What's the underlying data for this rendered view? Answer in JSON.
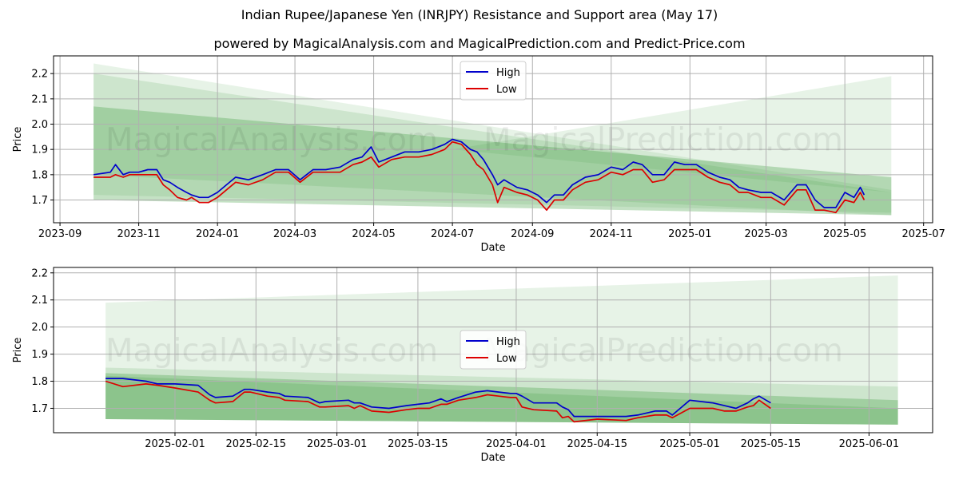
{
  "title": "Indian Rupee/Japanese Yen (INRJPY) Resistance and Support area (May 17)",
  "subtitle": "powered by MagicalAnalysis.com and MagicalPrediction.com and Predict-Price.com",
  "watermark": [
    "MagicalAnalysis.com",
    "MagicalPrediction.com"
  ],
  "colors": {
    "high": "#0000cc",
    "low": "#dd0000",
    "band": "#3c9a3c",
    "grid": "#b0b0b0"
  },
  "chart_data": [
    {
      "type": "line",
      "xlabel": "Date",
      "ylabel": "Price",
      "x_range": [
        "2023-08-27",
        "2025-07-08"
      ],
      "ylim": [
        1.61,
        2.27
      ],
      "yticks": [
        1.7,
        1.8,
        1.9,
        2.0,
        2.1,
        2.2
      ],
      "ytick_labels": [
        "1.7",
        "1.8",
        "1.9",
        "2.0",
        "2.1",
        "2.2"
      ],
      "xticks": [
        "2023-09-01",
        "2023-11-01",
        "2024-01-01",
        "2024-03-01",
        "2024-05-01",
        "2024-07-01",
        "2024-09-01",
        "2024-11-01",
        "2025-01-01",
        "2025-03-01",
        "2025-05-01",
        "2025-07-01"
      ],
      "xtick_labels": [
        "2023-09",
        "2023-11",
        "2024-01",
        "2024-03",
        "2024-05",
        "2024-07",
        "2024-09",
        "2024-11",
        "2025-01",
        "2025-03",
        "2025-05",
        "2025-07"
      ],
      "grid": true,
      "legend": {
        "position": "top-center",
        "entries": [
          "High",
          "Low"
        ]
      },
      "bands": [
        {
          "x": [
            "2023-09-27",
            "2025-06-06"
          ],
          "upper": [
            2.24,
            1.74
          ],
          "lower": [
            1.72,
            1.65
          ],
          "opacity": 0.12
        },
        {
          "x": [
            "2023-09-27",
            "2025-06-06"
          ],
          "upper": [
            2.2,
            1.73
          ],
          "lower": [
            1.8,
            1.64
          ],
          "opacity": 0.15
        },
        {
          "x": [
            "2023-09-27",
            "2025-06-06"
          ],
          "upper": [
            2.07,
            1.79
          ],
          "lower": [
            1.7,
            1.64
          ],
          "opacity": 0.3
        },
        {
          "x": [
            "2024-07-01",
            "2025-06-06"
          ],
          "upper": [
            1.9,
            2.19
          ],
          "lower": [
            1.9,
            1.73
          ],
          "opacity": 0.12
        }
      ],
      "series": [
        {
          "name": "High",
          "x": [
            "2023-09-27",
            "2023-10-10",
            "2023-10-14",
            "2023-10-20",
            "2023-10-25",
            "2023-11-01",
            "2023-11-08",
            "2023-11-15",
            "2023-11-20",
            "2023-11-25",
            "2023-12-01",
            "2023-12-08",
            "2023-12-12",
            "2023-12-18",
            "2023-12-25",
            "2024-01-01",
            "2024-01-08",
            "2024-01-15",
            "2024-01-25",
            "2024-02-05",
            "2024-02-15",
            "2024-02-25",
            "2024-03-05",
            "2024-03-15",
            "2024-03-25",
            "2024-04-05",
            "2024-04-15",
            "2024-04-22",
            "2024-04-29",
            "2024-05-05",
            "2024-05-15",
            "2024-05-25",
            "2024-06-05",
            "2024-06-15",
            "2024-06-25",
            "2024-07-01",
            "2024-07-08",
            "2024-07-15",
            "2024-07-20",
            "2024-07-25",
            "2024-08-01",
            "2024-08-05",
            "2024-08-10",
            "2024-08-20",
            "2024-08-28",
            "2024-09-05",
            "2024-09-12",
            "2024-09-18",
            "2024-09-25",
            "2024-10-02",
            "2024-10-12",
            "2024-10-22",
            "2024-11-01",
            "2024-11-10",
            "2024-11-18",
            "2024-11-25",
            "2024-12-03",
            "2024-12-12",
            "2024-12-20",
            "2024-12-28",
            "2025-01-06",
            "2025-01-15",
            "2025-01-24",
            "2025-02-01",
            "2025-02-08",
            "2025-02-15",
            "2025-02-25",
            "2025-03-05",
            "2025-03-15",
            "2025-03-25",
            "2025-04-01",
            "2025-04-08",
            "2025-04-15",
            "2025-04-24",
            "2025-05-01",
            "2025-05-08",
            "2025-05-13",
            "2025-05-16"
          ],
          "values": [
            1.8,
            1.81,
            1.84,
            1.8,
            1.81,
            1.81,
            1.82,
            1.82,
            1.78,
            1.77,
            1.75,
            1.73,
            1.72,
            1.71,
            1.71,
            1.73,
            1.76,
            1.79,
            1.78,
            1.8,
            1.82,
            1.82,
            1.78,
            1.82,
            1.82,
            1.83,
            1.86,
            1.87,
            1.91,
            1.85,
            1.87,
            1.89,
            1.89,
            1.9,
            1.92,
            1.94,
            1.93,
            1.9,
            1.89,
            1.86,
            1.8,
            1.76,
            1.78,
            1.75,
            1.74,
            1.72,
            1.69,
            1.72,
            1.72,
            1.76,
            1.79,
            1.8,
            1.83,
            1.82,
            1.85,
            1.84,
            1.8,
            1.8,
            1.85,
            1.84,
            1.84,
            1.81,
            1.79,
            1.78,
            1.75,
            1.74,
            1.73,
            1.73,
            1.7,
            1.76,
            1.76,
            1.7,
            1.67,
            1.67,
            1.73,
            1.71,
            1.75,
            1.72
          ]
        },
        {
          "name": "Low",
          "x": [
            "2023-09-27",
            "2023-10-10",
            "2023-10-14",
            "2023-10-20",
            "2023-10-25",
            "2023-11-01",
            "2023-11-08",
            "2023-11-15",
            "2023-11-20",
            "2023-11-25",
            "2023-12-01",
            "2023-12-08",
            "2023-12-12",
            "2023-12-18",
            "2023-12-25",
            "2024-01-01",
            "2024-01-08",
            "2024-01-15",
            "2024-01-25",
            "2024-02-05",
            "2024-02-15",
            "2024-02-25",
            "2024-03-05",
            "2024-03-15",
            "2024-03-25",
            "2024-04-05",
            "2024-04-15",
            "2024-04-22",
            "2024-04-29",
            "2024-05-05",
            "2024-05-15",
            "2024-05-25",
            "2024-06-05",
            "2024-06-15",
            "2024-06-25",
            "2024-07-01",
            "2024-07-08",
            "2024-07-15",
            "2024-07-20",
            "2024-07-25",
            "2024-08-01",
            "2024-08-05",
            "2024-08-10",
            "2024-08-20",
            "2024-08-28",
            "2024-09-05",
            "2024-09-12",
            "2024-09-18",
            "2024-09-25",
            "2024-10-02",
            "2024-10-12",
            "2024-10-22",
            "2024-11-01",
            "2024-11-10",
            "2024-11-18",
            "2024-11-25",
            "2024-12-03",
            "2024-12-12",
            "2024-12-20",
            "2024-12-28",
            "2025-01-06",
            "2025-01-15",
            "2025-01-24",
            "2025-02-01",
            "2025-02-08",
            "2025-02-15",
            "2025-02-25",
            "2025-03-05",
            "2025-03-15",
            "2025-03-25",
            "2025-04-01",
            "2025-04-08",
            "2025-04-15",
            "2025-04-24",
            "2025-05-01",
            "2025-05-08",
            "2025-05-13",
            "2025-05-16"
          ],
          "values": [
            1.79,
            1.79,
            1.8,
            1.79,
            1.8,
            1.8,
            1.8,
            1.8,
            1.76,
            1.74,
            1.71,
            1.7,
            1.71,
            1.69,
            1.69,
            1.71,
            1.74,
            1.77,
            1.76,
            1.78,
            1.81,
            1.81,
            1.77,
            1.81,
            1.81,
            1.81,
            1.84,
            1.85,
            1.87,
            1.83,
            1.86,
            1.87,
            1.87,
            1.88,
            1.9,
            1.93,
            1.92,
            1.88,
            1.84,
            1.82,
            1.76,
            1.69,
            1.75,
            1.73,
            1.72,
            1.7,
            1.66,
            1.7,
            1.7,
            1.74,
            1.77,
            1.78,
            1.81,
            1.8,
            1.82,
            1.82,
            1.77,
            1.78,
            1.82,
            1.82,
            1.82,
            1.79,
            1.77,
            1.76,
            1.73,
            1.73,
            1.71,
            1.71,
            1.68,
            1.74,
            1.74,
            1.66,
            1.66,
            1.65,
            1.7,
            1.69,
            1.73,
            1.7
          ]
        }
      ]
    },
    {
      "type": "line",
      "xlabel": "Date",
      "ylabel": "Price",
      "x_range": [
        "2025-01-11",
        "2025-06-12"
      ],
      "ylim": [
        1.61,
        2.22
      ],
      "yticks": [
        1.7,
        1.8,
        1.9,
        2.0,
        2.1,
        2.2
      ],
      "ytick_labels": [
        "1.7",
        "1.8",
        "1.9",
        "2.0",
        "2.1",
        "2.2"
      ],
      "xticks": [
        "2025-02-01",
        "2025-02-15",
        "2025-03-01",
        "2025-03-15",
        "2025-04-01",
        "2025-04-15",
        "2025-05-01",
        "2025-05-15",
        "2025-06-01"
      ],
      "xtick_labels": [
        "2025-02-01",
        "2025-02-15",
        "2025-03-01",
        "2025-03-15",
        "2025-04-01",
        "2025-04-15",
        "2025-05-01",
        "2025-05-15",
        "2025-06-01"
      ],
      "grid": true,
      "legend": {
        "position": "center",
        "entries": [
          "High",
          "Low"
        ]
      },
      "bands": [
        {
          "x": [
            "2025-01-20",
            "2025-06-06"
          ],
          "upper": [
            2.09,
            2.19
          ],
          "lower": [
            1.66,
            1.64
          ],
          "opacity": 0.12
        },
        {
          "x": [
            "2025-01-20",
            "2025-06-06"
          ],
          "upper": [
            1.85,
            1.78
          ],
          "lower": [
            1.66,
            1.64
          ],
          "opacity": 0.15
        },
        {
          "x": [
            "2025-01-20",
            "2025-06-06"
          ],
          "upper": [
            1.83,
            1.73
          ],
          "lower": [
            1.66,
            1.64
          ],
          "opacity": 0.3
        },
        {
          "x": [
            "2025-01-20",
            "2025-06-06"
          ],
          "upper": [
            1.82,
            1.7
          ],
          "lower": [
            1.66,
            1.64
          ],
          "opacity": 0.2
        }
      ],
      "series": [
        {
          "name": "High",
          "x": [
            "2025-01-20",
            "2025-01-23",
            "2025-01-27",
            "2025-01-29",
            "2025-02-01",
            "2025-02-05",
            "2025-02-07",
            "2025-02-08",
            "2025-02-11",
            "2025-02-13",
            "2025-02-14",
            "2025-02-17",
            "2025-02-19",
            "2025-02-20",
            "2025-02-24",
            "2025-02-26",
            "2025-02-27",
            "2025-03-03",
            "2025-03-04",
            "2025-03-05",
            "2025-03-07",
            "2025-03-10",
            "2025-03-13",
            "2025-03-15",
            "2025-03-17",
            "2025-03-19",
            "2025-03-20",
            "2025-03-22",
            "2025-03-25",
            "2025-03-27",
            "2025-03-29",
            "2025-03-31",
            "2025-04-01",
            "2025-04-02",
            "2025-04-04",
            "2025-04-08",
            "2025-04-09",
            "2025-04-10",
            "2025-04-11",
            "2025-04-15",
            "2025-04-20",
            "2025-04-22",
            "2025-04-25",
            "2025-04-27",
            "2025-04-28",
            "2025-05-01",
            "2025-05-05",
            "2025-05-07",
            "2025-05-09",
            "2025-05-11",
            "2025-05-12",
            "2025-05-13",
            "2025-05-15"
          ],
          "values": [
            1.81,
            1.81,
            1.8,
            1.79,
            1.79,
            1.785,
            1.75,
            1.74,
            1.745,
            1.77,
            1.77,
            1.76,
            1.755,
            1.745,
            1.74,
            1.72,
            1.725,
            1.73,
            1.72,
            1.72,
            1.705,
            1.7,
            1.71,
            1.715,
            1.72,
            1.735,
            1.725,
            1.74,
            1.76,
            1.765,
            1.76,
            1.755,
            1.755,
            1.745,
            1.72,
            1.72,
            1.705,
            1.695,
            1.67,
            1.67,
            1.67,
            1.675,
            1.69,
            1.69,
            1.675,
            1.73,
            1.72,
            1.71,
            1.7,
            1.72,
            1.735,
            1.745,
            1.72
          ]
        },
        {
          "name": "Low",
          "x": [
            "2025-01-20",
            "2025-01-23",
            "2025-01-27",
            "2025-01-29",
            "2025-02-01",
            "2025-02-05",
            "2025-02-07",
            "2025-02-08",
            "2025-02-11",
            "2025-02-13",
            "2025-02-14",
            "2025-02-17",
            "2025-02-19",
            "2025-02-20",
            "2025-02-24",
            "2025-02-26",
            "2025-02-27",
            "2025-03-03",
            "2025-03-04",
            "2025-03-05",
            "2025-03-07",
            "2025-03-10",
            "2025-03-13",
            "2025-03-15",
            "2025-03-17",
            "2025-03-19",
            "2025-03-20",
            "2025-03-22",
            "2025-03-25",
            "2025-03-27",
            "2025-03-29",
            "2025-03-31",
            "2025-04-01",
            "2025-04-02",
            "2025-04-04",
            "2025-04-08",
            "2025-04-09",
            "2025-04-10",
            "2025-04-11",
            "2025-04-15",
            "2025-04-20",
            "2025-04-22",
            "2025-04-25",
            "2025-04-27",
            "2025-04-28",
            "2025-05-01",
            "2025-05-05",
            "2025-05-07",
            "2025-05-09",
            "2025-05-11",
            "2025-05-12",
            "2025-05-13",
            "2025-05-15"
          ],
          "values": [
            1.8,
            1.78,
            1.79,
            1.785,
            1.775,
            1.76,
            1.73,
            1.72,
            1.725,
            1.76,
            1.76,
            1.745,
            1.74,
            1.73,
            1.725,
            1.705,
            1.705,
            1.71,
            1.7,
            1.71,
            1.69,
            1.685,
            1.695,
            1.7,
            1.7,
            1.715,
            1.715,
            1.73,
            1.74,
            1.75,
            1.745,
            1.74,
            1.74,
            1.705,
            1.695,
            1.69,
            1.665,
            1.67,
            1.65,
            1.66,
            1.655,
            1.665,
            1.675,
            1.675,
            1.665,
            1.7,
            1.7,
            1.69,
            1.69,
            1.705,
            1.71,
            1.73,
            1.7
          ]
        }
      ]
    }
  ]
}
